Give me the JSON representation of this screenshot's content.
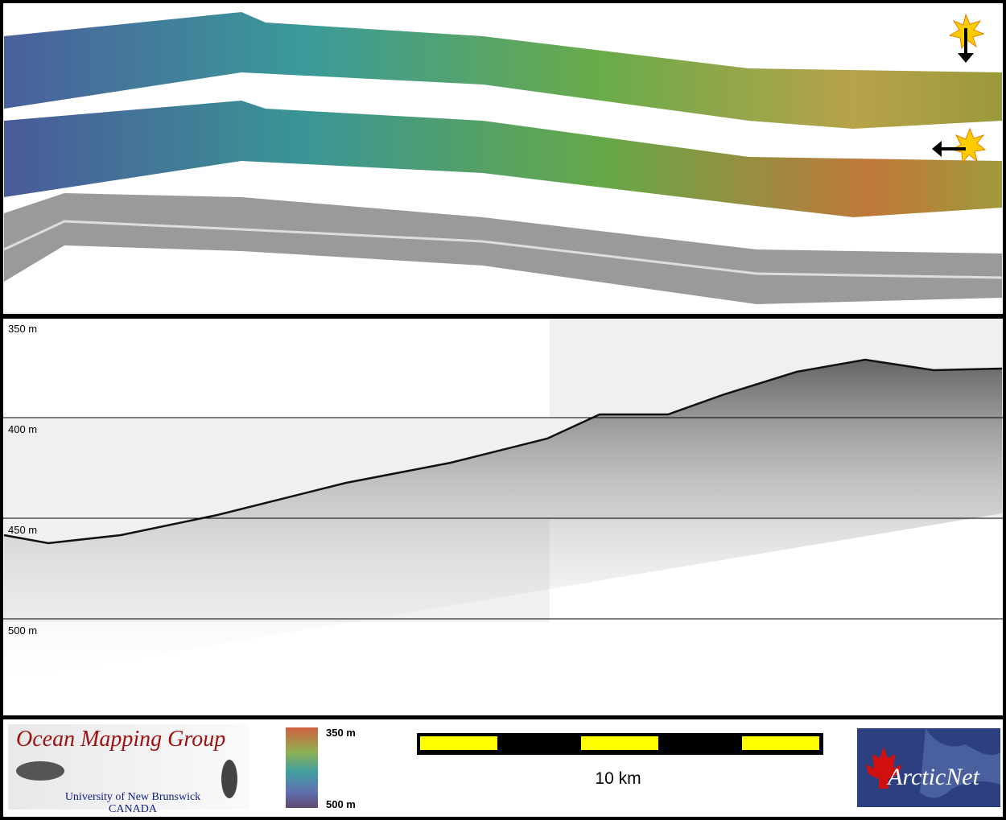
{
  "profile": {
    "depth_ticks": [
      {
        "value": 350,
        "label": "350 m"
      },
      {
        "value": 400,
        "label": "400 m"
      },
      {
        "value": 450,
        "label": "450 m"
      },
      {
        "value": 500,
        "label": "500 m"
      }
    ]
  },
  "seafloor": {
    "x_km": [
      0,
      1.1,
      2.9,
      5.3,
      8.5,
      11.1,
      13.5,
      14.8,
      16.5,
      17.9,
      19.7,
      21.4,
      23.1,
      24.8
    ],
    "depth_m": [
      458.4,
      462.4,
      458.4,
      448.4,
      432.4,
      422.4,
      410.4,
      398.4,
      398.4,
      388.4,
      377.2,
      371.2,
      376.4,
      375.6
    ]
  },
  "logo": {
    "title": "Ocean Mapping Group",
    "university": "University of New Brunswick",
    "country": "CANADA"
  },
  "colorbar": {
    "top_label": "350 m",
    "bottom_label": "500 m"
  },
  "scalebar": {
    "label": "10 km"
  },
  "partner": {
    "name": "ArcticNet"
  }
}
